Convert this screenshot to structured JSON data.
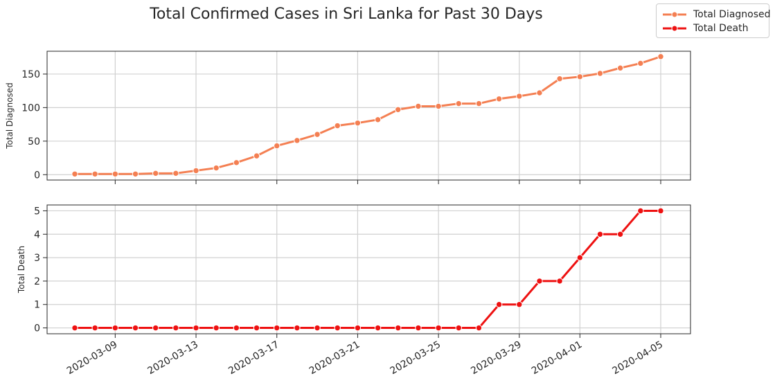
{
  "title": "Total Confirmed Cases in Sri Lanka for Past 30 Days",
  "legend": [
    {
      "label": "Total Diagnosed",
      "color": "#f47f52"
    },
    {
      "label": "Total Death",
      "color": "#ee1111"
    }
  ],
  "chart_data": [
    {
      "type": "line",
      "ylabel": "Total Diagnosed",
      "series": [
        {
          "name": "Total Diagnosed",
          "color": "#f47f52"
        }
      ],
      "x": [
        "2020-03-07",
        "2020-03-08",
        "2020-03-09",
        "2020-03-10",
        "2020-03-11",
        "2020-03-12",
        "2020-03-13",
        "2020-03-14",
        "2020-03-15",
        "2020-03-16",
        "2020-03-17",
        "2020-03-18",
        "2020-03-19",
        "2020-03-20",
        "2020-03-21",
        "2020-03-22",
        "2020-03-23",
        "2020-03-24",
        "2020-03-25",
        "2020-03-26",
        "2020-03-27",
        "2020-03-28",
        "2020-03-29",
        "2020-03-30",
        "2020-03-31",
        "2020-04-01",
        "2020-04-02",
        "2020-04-03",
        "2020-04-04",
        "2020-04-05"
      ],
      "values": [
        1,
        1,
        1,
        1,
        2,
        2,
        6,
        10,
        18,
        28,
        43,
        51,
        60,
        73,
        77,
        82,
        97,
        102,
        102,
        106,
        106,
        113,
        117,
        122,
        143,
        146,
        151,
        159,
        166,
        176
      ],
      "ylim": [
        -8,
        184
      ],
      "yticks": [
        0,
        50,
        100,
        150
      ],
      "grid": true
    },
    {
      "type": "line",
      "ylabel": "Total Death",
      "series": [
        {
          "name": "Total Death",
          "color": "#ee1111"
        }
      ],
      "x": [
        "2020-03-07",
        "2020-03-08",
        "2020-03-09",
        "2020-03-10",
        "2020-03-11",
        "2020-03-12",
        "2020-03-13",
        "2020-03-14",
        "2020-03-15",
        "2020-03-16",
        "2020-03-17",
        "2020-03-18",
        "2020-03-19",
        "2020-03-20",
        "2020-03-21",
        "2020-03-22",
        "2020-03-23",
        "2020-03-24",
        "2020-03-25",
        "2020-03-26",
        "2020-03-27",
        "2020-03-28",
        "2020-03-29",
        "2020-03-30",
        "2020-03-31",
        "2020-04-01",
        "2020-04-02",
        "2020-04-03",
        "2020-04-04",
        "2020-04-05"
      ],
      "values": [
        0,
        0,
        0,
        0,
        0,
        0,
        0,
        0,
        0,
        0,
        0,
        0,
        0,
        0,
        0,
        0,
        0,
        0,
        0,
        0,
        0,
        1,
        1,
        2,
        2,
        3,
        4,
        4,
        5,
        5
      ],
      "ylim": [
        -0.25,
        5.25
      ],
      "yticks": [
        0,
        1,
        2,
        3,
        4,
        5
      ],
      "grid": true
    }
  ],
  "xticks": [
    "2020-03-09",
    "2020-03-13",
    "2020-03-17",
    "2020-03-21",
    "2020-03-25",
    "2020-03-29",
    "2020-04-01",
    "2020-04-05"
  ]
}
